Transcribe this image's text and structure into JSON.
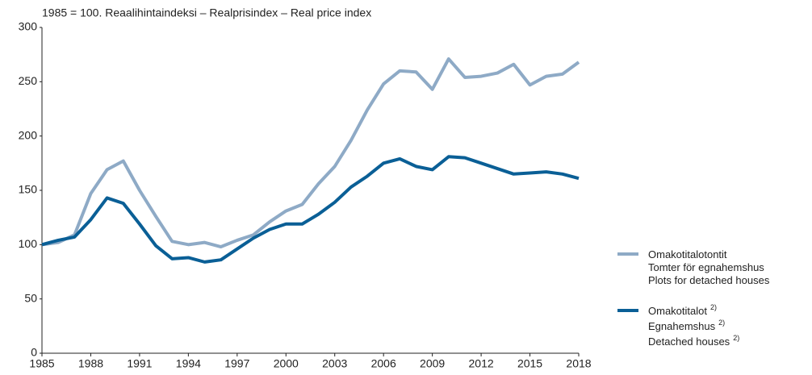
{
  "chart_data": {
    "type": "line",
    "title": "1985 = 100. Reaalihintaindeksi – Realprisindex – Real price index",
    "x": [
      1985,
      1986,
      1987,
      1988,
      1989,
      1990,
      1991,
      1992,
      1993,
      1994,
      1995,
      1996,
      1997,
      1998,
      1999,
      2000,
      2001,
      2002,
      2003,
      2004,
      2005,
      2006,
      2007,
      2008,
      2009,
      2010,
      2011,
      2012,
      2013,
      2014,
      2015,
      2016,
      2017,
      2018
    ],
    "series": [
      {
        "name": [
          "Omakotitalotontit",
          "Tomter för egnahemshus",
          "Plots for detached houses"
        ],
        "color": "#8eaac6",
        "values": [
          100,
          102,
          109,
          147,
          169,
          177,
          150,
          126,
          103,
          100,
          102,
          98,
          104,
          109,
          121,
          131,
          137,
          156,
          172,
          196,
          224,
          248,
          260,
          259,
          243,
          271,
          254,
          255,
          258,
          266,
          247,
          255,
          257,
          268
        ]
      },
      {
        "name": [
          "Omakotitalot",
          "Egnahemshus",
          "Detached houses"
        ],
        "footnote": "2)",
        "color": "#0a5f96",
        "values": [
          100,
          104,
          107,
          123,
          143,
          138,
          119,
          99,
          87,
          88,
          84,
          86,
          96,
          106,
          114,
          119,
          119,
          128,
          139,
          153,
          163,
          175,
          179,
          172,
          169,
          181,
          180,
          175,
          170,
          165,
          166,
          167,
          165,
          161
        ]
      }
    ],
    "xlim": [
      1985,
      2018
    ],
    "xticks": [
      1985,
      1988,
      1991,
      1994,
      1997,
      2000,
      2003,
      2006,
      2009,
      2012,
      2015,
      2018
    ],
    "ylim": [
      0,
      300
    ],
    "yticks": [
      0,
      50,
      100,
      150,
      200,
      250,
      300
    ],
    "grid": false
  }
}
